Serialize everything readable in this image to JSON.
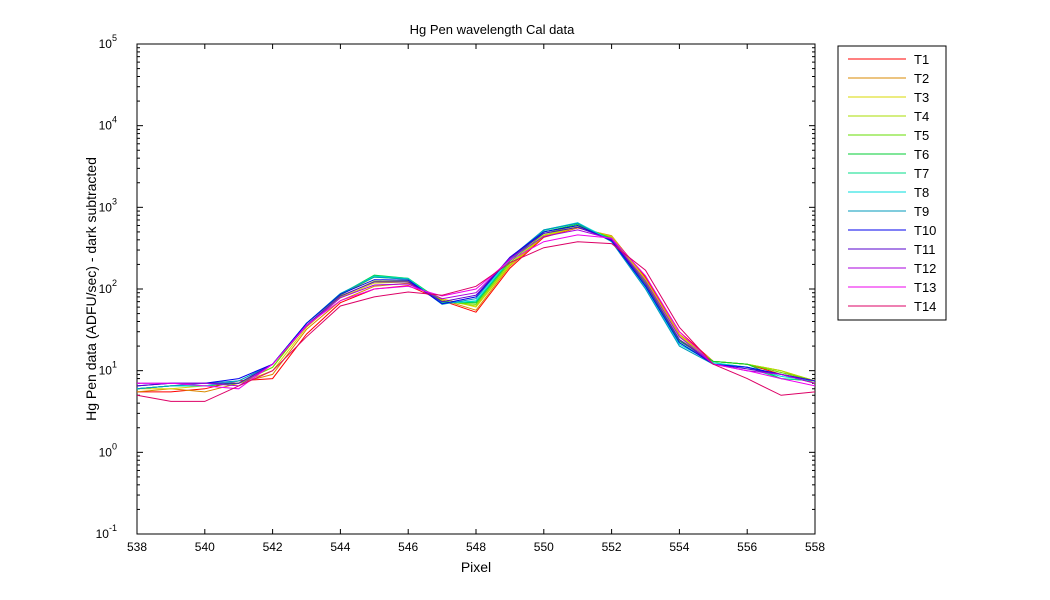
{
  "chart_data": {
    "type": "line",
    "title": "Hg Pen wavelength Cal data",
    "xlabel": "Pixel",
    "ylabel": "Hg Pen data (ADFU/sec) - dark subtracted",
    "xlim": [
      538,
      558
    ],
    "ylim": [
      0.1,
      100000
    ],
    "yscale": "log",
    "grid": false,
    "legend_position": "outside-right",
    "x_ticks": [
      538,
      540,
      542,
      544,
      546,
      548,
      550,
      552,
      554,
      556,
      558
    ],
    "x_tick_labels": [
      "538",
      "540",
      "542",
      "544",
      "546",
      "548",
      "550",
      "552",
      "554",
      "556",
      "558"
    ],
    "y_ticks": [
      {
        "value": 0.1,
        "base": "10",
        "exp": "-1"
      },
      {
        "value": 1,
        "base": "10",
        "exp": "0"
      },
      {
        "value": 10,
        "base": "10",
        "exp": "1"
      },
      {
        "value": 100,
        "base": "10",
        "exp": "2"
      },
      {
        "value": 1000,
        "base": "10",
        "exp": "3"
      },
      {
        "value": 10000,
        "base": "10",
        "exp": "4"
      },
      {
        "value": 100000,
        "base": "10",
        "exp": "5"
      }
    ],
    "x": [
      538,
      539,
      540,
      541,
      542,
      543,
      544,
      545,
      546,
      547,
      548,
      549,
      550,
      551,
      552,
      553,
      554,
      555,
      556,
      557,
      558
    ],
    "series": [
      {
        "name": "T1",
        "color": "#ff0000",
        "values": [
          5.5,
          5.5,
          6,
          7.5,
          8,
          28,
          68,
          100,
          110,
          72,
          52,
          180,
          430,
          560,
          440,
          140,
          30,
          13,
          12,
          9,
          7
        ]
      },
      {
        "name": "T2",
        "color": "#d98a00",
        "values": [
          5.5,
          6,
          5.5,
          7,
          9,
          32,
          72,
          108,
          118,
          74,
          55,
          190,
          440,
          560,
          450,
          135,
          28,
          13,
          12,
          10,
          7
        ]
      },
      {
        "name": "T3",
        "color": "#d8d800",
        "values": [
          6,
          6,
          6.5,
          7,
          10,
          34,
          78,
          118,
          122,
          76,
          60,
          195,
          450,
          570,
          440,
          130,
          27,
          13,
          12,
          10,
          7.5
        ]
      },
      {
        "name": "T4",
        "color": "#aadd00",
        "values": [
          6,
          6.5,
          6.5,
          7,
          11,
          36,
          80,
          125,
          125,
          72,
          62,
          200,
          460,
          580,
          430,
          125,
          26,
          13,
          12,
          10,
          7.5
        ]
      },
      {
        "name": "T5",
        "color": "#66dd00",
        "values": [
          6,
          6.5,
          6.5,
          7,
          11,
          38,
          84,
          140,
          132,
          70,
          65,
          210,
          480,
          600,
          420,
          120,
          24,
          13,
          12,
          9.5,
          7.5
        ]
      },
      {
        "name": "T6",
        "color": "#00cc33",
        "values": [
          6,
          6.5,
          6.5,
          7,
          12,
          38,
          86,
          148,
          135,
          70,
          68,
          220,
          500,
          620,
          410,
          115,
          23,
          13,
          12,
          8,
          7.5
        ]
      },
      {
        "name": "T7",
        "color": "#00dd88",
        "values": [
          6,
          6.5,
          6.5,
          7.5,
          12,
          38,
          86,
          145,
          135,
          68,
          70,
          225,
          520,
          640,
          400,
          110,
          22,
          12.5,
          11,
          8,
          7.5
        ]
      },
      {
        "name": "T8",
        "color": "#00dddd",
        "values": [
          6,
          6.5,
          6.5,
          7.5,
          12,
          38,
          88,
          142,
          133,
          66,
          72,
          230,
          530,
          650,
          390,
          105,
          21,
          12.5,
          11,
          8.5,
          7.5
        ]
      },
      {
        "name": "T9",
        "color": "#0099bb",
        "values": [
          6,
          6.5,
          7,
          7.5,
          12,
          38,
          88,
          140,
          132,
          65,
          76,
          240,
          530,
          640,
          380,
          100,
          20,
          12,
          11,
          9,
          7.5
        ]
      },
      {
        "name": "T10",
        "color": "#0000ee",
        "values": [
          6.5,
          7,
          7,
          8,
          12,
          38,
          86,
          130,
          128,
          66,
          80,
          245,
          500,
          600,
          390,
          108,
          22,
          12,
          11,
          9,
          7.5
        ]
      },
      {
        "name": "T11",
        "color": "#5500cc",
        "values": [
          6.5,
          7,
          7,
          7,
          12,
          36,
          82,
          122,
          122,
          70,
          84,
          240,
          480,
          570,
          400,
          115,
          24,
          12,
          10.5,
          9,
          7.5
        ]
      },
      {
        "name": "T12",
        "color": "#aa00dd",
        "values": [
          7,
          7,
          7,
          6.5,
          12,
          35,
          78,
          112,
          115,
          76,
          90,
          235,
          440,
          530,
          410,
          125,
          26,
          12,
          10,
          9,
          7
        ]
      },
      {
        "name": "T13",
        "color": "#ee00ee",
        "values": [
          7,
          7,
          6.5,
          6,
          12,
          36,
          72,
          100,
          108,
          82,
          100,
          225,
          380,
          460,
          420,
          145,
          30,
          12,
          10,
          8,
          6.5
        ]
      },
      {
        "name": "T14",
        "color": "#dd0066",
        "values": [
          5,
          4.2,
          4.2,
          6.5,
          10,
          26,
          62,
          80,
          92,
          84,
          108,
          210,
          320,
          380,
          360,
          170,
          34,
          12,
          8,
          5,
          5.5
        ]
      }
    ]
  }
}
